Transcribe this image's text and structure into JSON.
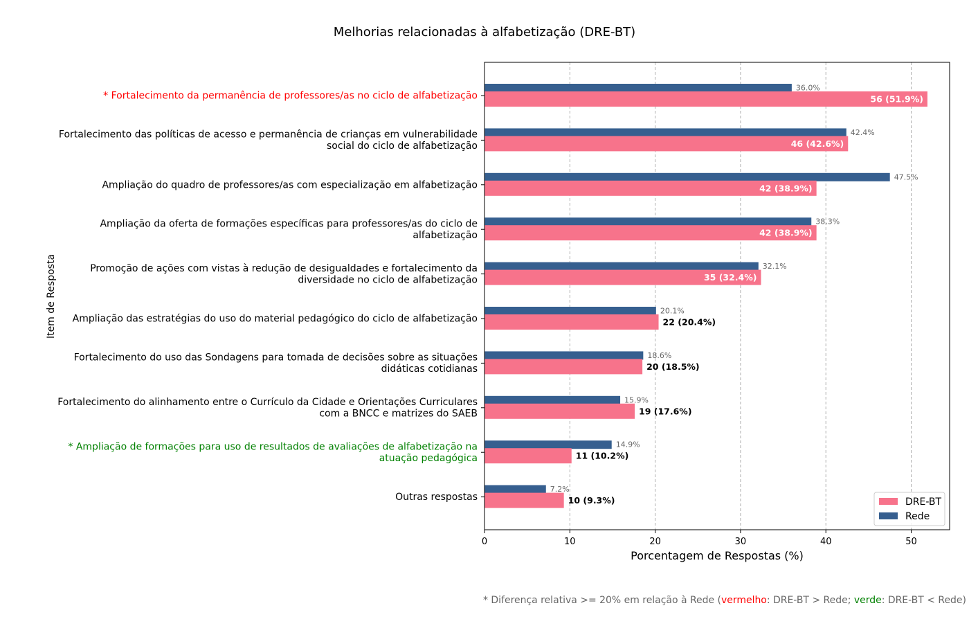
{
  "chart_data": {
    "type": "bar",
    "orientation": "horizontal",
    "title": "Melhorias relacionadas à alfabetização (DRE-BT)",
    "xlabel": "Porcentagem de Respostas (%)",
    "ylabel": "Item de Resposta",
    "xlim": [
      0,
      54.5
    ],
    "xticks": [
      0,
      10,
      20,
      30,
      40,
      50
    ],
    "grid": "x-dashed",
    "legend_position": "bottom-right",
    "colors": {
      "dre": "#f7738b",
      "rede": "#365f8f",
      "highlight_higher": "#ff0000",
      "highlight_lower": "#008000",
      "default_label": "#000000"
    },
    "categories": [
      {
        "lines": [
          "* Fortalecimento da permanência de professores/as no ciclo de alfabetização"
        ],
        "highlight": "higher"
      },
      {
        "lines": [
          "Fortalecimento das políticas de acesso e permanência de crianças em vulnerabilidade",
          "social do ciclo de alfabetização"
        ],
        "highlight": "none"
      },
      {
        "lines": [
          "Ampliação do quadro de professores/as com especialização em alfabetização"
        ],
        "highlight": "none"
      },
      {
        "lines": [
          "Ampliação da oferta de formações específicas para professores/as do ciclo de",
          "alfabetização"
        ],
        "highlight": "none"
      },
      {
        "lines": [
          "Promoção de ações com vistas à redução de desigualdades e fortalecimento da",
          "diversidade no ciclo de alfabetização"
        ],
        "highlight": "none"
      },
      {
        "lines": [
          "Ampliação das estratégias do uso do material pedagógico do ciclo de alfabetização"
        ],
        "highlight": "none"
      },
      {
        "lines": [
          "Fortalecimento do uso das Sondagens para tomada de decisões sobre as situações",
          "didáticas cotidianas"
        ],
        "highlight": "none"
      },
      {
        "lines": [
          "Fortalecimento do alinhamento entre o Currículo da Cidade e Orientações Curriculares",
          "com a BNCC e matrizes do SAEB"
        ],
        "highlight": "none"
      },
      {
        "lines": [
          "* Ampliação de formações para uso de resultados de avaliações de alfabetização na",
          "atuação pedagógica"
        ],
        "highlight": "lower"
      },
      {
        "lines": [
          "Outras respostas"
        ],
        "highlight": "none"
      }
    ],
    "series": [
      {
        "name": "DRE-BT",
        "values": [
          51.9,
          42.6,
          38.9,
          38.9,
          32.4,
          20.4,
          18.5,
          17.6,
          10.2,
          9.3
        ],
        "labels": [
          "56 (51.9%)",
          "46 (42.6%)",
          "42 (38.9%)",
          "42 (38.9%)",
          "35 (32.4%)",
          "22 (20.4%)",
          "20 (18.5%)",
          "19 (17.6%)",
          "11 (10.2%)",
          "10 (9.3%)"
        ],
        "label_inside": [
          true,
          true,
          true,
          true,
          true,
          false,
          false,
          false,
          false,
          false
        ]
      },
      {
        "name": "Rede",
        "values": [
          36.0,
          42.4,
          47.5,
          38.3,
          32.1,
          20.1,
          18.6,
          15.9,
          14.9,
          7.2
        ],
        "labels": [
          "36.0%",
          "42.4%",
          "47.5%",
          "38.3%",
          "32.1%",
          "20.1%",
          "18.6%",
          "15.9%",
          "14.9%",
          "7.2%"
        ]
      }
    ],
    "footnote": [
      {
        "text": "* Diferença relativa >= 20% em relação à Rede (",
        "color": "#666666"
      },
      {
        "text": "vermelho",
        "color": "#ff0000"
      },
      {
        "text": ": DRE-BT > Rede; ",
        "color": "#666666"
      },
      {
        "text": "verde",
        "color": "#008000"
      },
      {
        "text": ": DRE-BT < Rede)",
        "color": "#666666"
      }
    ]
  }
}
